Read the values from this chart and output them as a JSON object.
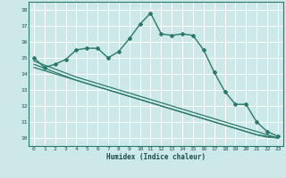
{
  "xlabel": "Humidex (Indice chaleur)",
  "bg_color": "#cce8e8",
  "grid_color": "#aed4d4",
  "line_color": "#2a7a6a",
  "x_values": [
    0,
    1,
    2,
    3,
    4,
    5,
    6,
    7,
    8,
    9,
    10,
    11,
    12,
    13,
    14,
    15,
    16,
    17,
    18,
    19,
    20,
    21,
    22,
    23
  ],
  "series1": [
    15.0,
    14.4,
    14.6,
    14.9,
    15.5,
    15.6,
    15.6,
    15.0,
    15.4,
    16.2,
    17.1,
    17.8,
    16.5,
    16.4,
    16.5,
    16.4,
    15.5,
    14.1,
    12.9,
    12.1,
    12.1,
    11.0,
    10.4,
    10.1
  ],
  "series2": [
    14.8,
    14.55,
    14.3,
    14.05,
    13.8,
    13.6,
    13.4,
    13.2,
    13.0,
    12.8,
    12.6,
    12.4,
    12.2,
    12.0,
    11.8,
    11.6,
    11.4,
    11.2,
    11.0,
    10.8,
    10.6,
    10.4,
    10.2,
    10.0
  ],
  "series3": [
    14.6,
    14.35,
    14.1,
    13.85,
    13.6,
    13.4,
    13.2,
    13.0,
    12.8,
    12.6,
    12.4,
    12.2,
    12.0,
    11.8,
    11.6,
    11.4,
    11.2,
    11.0,
    10.8,
    10.6,
    10.4,
    10.2,
    10.05,
    10.0
  ],
  "series4": [
    14.4,
    14.2,
    14.0,
    13.8,
    13.6,
    13.4,
    13.2,
    13.0,
    12.8,
    12.6,
    12.4,
    12.2,
    12.0,
    11.8,
    11.6,
    11.4,
    11.2,
    11.0,
    10.8,
    10.6,
    10.4,
    10.2,
    10.1,
    10.0
  ],
  "ylim": [
    9.5,
    18.5
  ],
  "xlim": [
    -0.5,
    23.5
  ],
  "yticks": [
    10,
    11,
    12,
    13,
    14,
    15,
    16,
    17,
    18
  ],
  "xticks": [
    0,
    1,
    2,
    3,
    4,
    5,
    6,
    7,
    8,
    9,
    10,
    11,
    12,
    13,
    14,
    15,
    16,
    17,
    18,
    19,
    20,
    21,
    22,
    23
  ]
}
